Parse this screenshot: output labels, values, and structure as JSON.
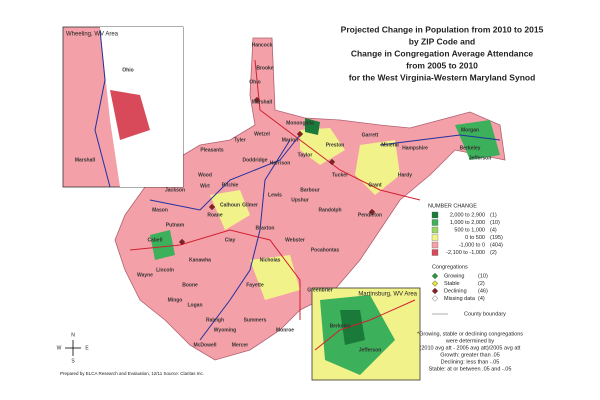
{
  "title": [
    "Projected Change in Population from 2010 to 2015",
    "by ZIP Code and",
    "Change in Congregation Average Attendance",
    "from 2005 to 2010",
    "for the West Virginia-Western Maryland Synod"
  ],
  "insets": [
    "Wheeling, WV Area",
    "Martinsburg, WV Area"
  ],
  "counties": [
    "Hancock",
    "Brooke",
    "Ohio",
    "Marshall",
    "Wetzel",
    "Tyler",
    "Pleasants",
    "Wood",
    "Wirt",
    "Ritchie",
    "Doddridge",
    "Harrison",
    "Monongalia",
    "Marion",
    "Preston",
    "Taylor",
    "Barbour",
    "Tucker",
    "Grant",
    "Mineral",
    "Hampshire",
    "Hardy",
    "Morgan",
    "Berkeley",
    "Jefferson",
    "Pendleton",
    "Randolph",
    "Upshur",
    "Lewis",
    "Gilmer",
    "Calhoun",
    "Jackson",
    "Roane",
    "Mason",
    "Putnam",
    "Cabell",
    "Wayne",
    "Lincoln",
    "Kanawha",
    "Clay",
    "Braxton",
    "Webster",
    "Nicholas",
    "Pocahontas",
    "Fayette",
    "Greenbrier",
    "Boone",
    "Logan",
    "Mingo",
    "Raleigh",
    "Summers",
    "Monroe",
    "Wyoming",
    "McDowell",
    "Mercer",
    "Garrett"
  ],
  "inset_counties": [
    "Ohio",
    "Marshall",
    "Berkeley",
    "Jefferson"
  ],
  "legend": {
    "number_title": "NUMBER CHANGE",
    "number_items": [
      {
        "label": "2,000 to 2,900",
        "count": "(1)",
        "color": "#1a7a3a"
      },
      {
        "label": "1,000 to 2,000",
        "count": "(10)",
        "color": "#3cb05a"
      },
      {
        "label": "500 to 1,000",
        "count": "(4)",
        "color": "#9ad66a"
      },
      {
        "label": "0 to 500",
        "count": "(195)",
        "color": "#f2f28a"
      },
      {
        "label": "-1,000 to 0",
        "count": "(404)",
        "color": "#f4a0a8"
      },
      {
        "label": "-2,100 to -1,000",
        "count": "(2)",
        "color": "#d84a5a"
      }
    ],
    "cong_title": "Congregations",
    "cong_items": [
      {
        "label": "Growing",
        "count": "(10)",
        "color": "#2a9a3a"
      },
      {
        "label": "Stable",
        "count": "(2)",
        "color": "#e8e040"
      },
      {
        "label": "Declining",
        "count": "(46)",
        "color": "#8a2020"
      },
      {
        "label": "Missing data",
        "count": "(4)",
        "color": "#ffffff"
      }
    ],
    "boundary": "County boundary"
  },
  "note": [
    "*Growing, stable or declining congregations",
    "were determined by",
    "(2010 avg att - 2005 avg att)/2005 avg att",
    "Growth: greater than .05",
    "Declining: less than -.05",
    "Stable: at or between .05 and -.05"
  ],
  "compass": [
    "N",
    "S",
    "E",
    "W"
  ],
  "footer": "Prepared by ELCA Research and Evaluation, 12/11 Source: Claritas Inc."
}
